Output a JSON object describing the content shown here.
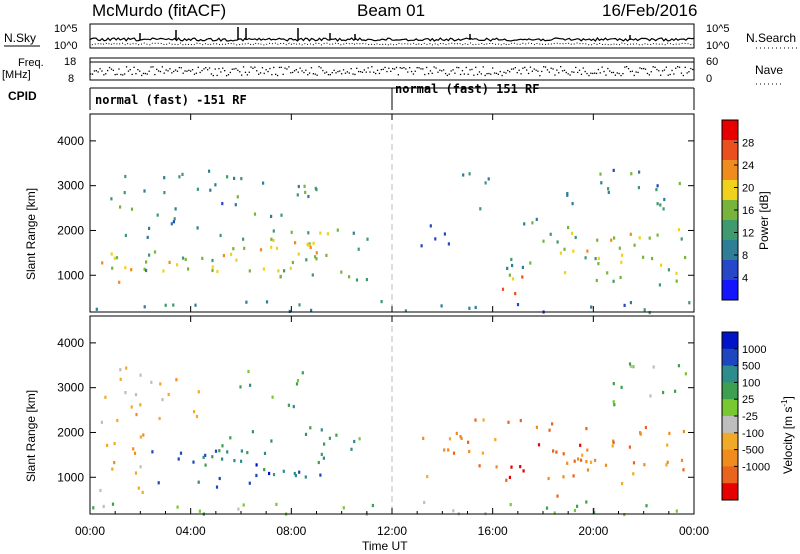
{
  "header": {
    "station": "McMurdo (fitACF)",
    "beam": "Beam 01",
    "date": "16/Feb/2016"
  },
  "top_panels": {
    "nsky_label": "N.Sky",
    "nsky_ticks": [
      "10^5",
      "10^0"
    ],
    "nsearch_label": "N.Search",
    "nsearch_ticks": [
      "10^5",
      "10^0"
    ],
    "freq_label": "Freq.",
    "freq_unit": "[MHz]",
    "freq_ticks": [
      "18",
      "8"
    ],
    "nave_label": "Nave",
    "nave_ticks": [
      "60",
      "0"
    ],
    "cpid_label": "CPID",
    "cpid_segments": [
      {
        "label": "normal (fast) -151 RF",
        "start_hour": 0,
        "end_hour": 12
      },
      {
        "label": "normal (fast) 151 RF",
        "start_hour": 12,
        "end_hour": 24
      }
    ]
  },
  "chart_data": [
    {
      "type": "heatmap",
      "name": "power",
      "ylabel": "Slant Range [km]",
      "yticks": [
        "1000",
        "2000",
        "3000",
        "4000"
      ],
      "ylim": [
        180,
        4600
      ],
      "xlim": [
        0,
        24
      ],
      "colorbar_label": "Power [dB]",
      "colorbar_ticks": [
        "4",
        "8",
        "12",
        "16",
        "20",
        "24",
        "28"
      ],
      "colorbar_range": [
        0,
        32
      ],
      "colors": [
        "#1414ff",
        "#2648c8",
        "#2e7f96",
        "#3f9a6e",
        "#78b43c",
        "#f0d21e",
        "#f08c1e",
        "#e9501e",
        "#e60000"
      ],
      "clusters": [
        {
          "t0": 0.2,
          "t1": 1.6,
          "r0": 650,
          "r1": 1400,
          "v": 22
        },
        {
          "t0": 0.3,
          "t1": 2.6,
          "r0": 900,
          "r1": 2300,
          "v": 14
        },
        {
          "t0": 0.8,
          "t1": 2.2,
          "r0": 2400,
          "r1": 3600,
          "v": 13
        },
        {
          "t0": 1.2,
          "t1": 5.2,
          "r0": 1000,
          "r1": 1600,
          "v": 18
        },
        {
          "t0": 4.8,
          "t1": 8.8,
          "r0": 850,
          "r1": 2000,
          "v": 17
        },
        {
          "t0": 6.5,
          "t1": 9.5,
          "r0": 1000,
          "r1": 2400,
          "v": 15
        },
        {
          "t0": 8.2,
          "t1": 9.5,
          "r0": 1100,
          "r1": 2500,
          "v": 20
        },
        {
          "t0": 9.3,
          "t1": 11.0,
          "r0": 900,
          "r1": 2100,
          "v": 12
        },
        {
          "t0": 2.5,
          "t1": 6.0,
          "r0": 2000,
          "r1": 3500,
          "v": 10
        },
        {
          "t0": 6.5,
          "t1": 9.0,
          "r0": 2300,
          "r1": 3300,
          "v": 11
        },
        {
          "t0": 16.2,
          "t1": 17.6,
          "r0": 600,
          "r1": 1400,
          "v": 24
        },
        {
          "t0": 16.5,
          "t1": 19.0,
          "r0": 1000,
          "r1": 2400,
          "v": 13
        },
        {
          "t0": 18.5,
          "t1": 23.8,
          "r0": 800,
          "r1": 2100,
          "v": 16
        },
        {
          "t0": 19.0,
          "t1": 22.5,
          "r0": 1300,
          "r1": 2000,
          "v": 21
        },
        {
          "t0": 18.8,
          "t1": 23.5,
          "r0": 2500,
          "r1": 3500,
          "v": 11
        },
        {
          "t0": 14.5,
          "t1": 15.8,
          "r0": 2500,
          "r1": 3400,
          "v": 9
        },
        {
          "t0": 12.8,
          "t1": 14.8,
          "r0": 1600,
          "r1": 2200,
          "v": 6
        },
        {
          "t0": 0.0,
          "t1": 24.0,
          "r0": 200,
          "r1": 450,
          "v": 7
        }
      ]
    },
    {
      "type": "heatmap",
      "name": "velocity",
      "ylabel": "Slant Range [km]",
      "xlabel": "Time UT",
      "xticks": [
        "00:00",
        "04:00",
        "08:00",
        "12:00",
        "16:00",
        "20:00",
        "00:00"
      ],
      "yticks": [
        "1000",
        "2000",
        "3000",
        "4000"
      ],
      "ylim": [
        180,
        4600
      ],
      "xlim": [
        0,
        24
      ],
      "colorbar_label": "Velocity [m s",
      "colorbar_label_sup": "-1",
      "colorbar_label_end": "]",
      "colorbar_ticks": [
        "1000",
        "500",
        "100",
        "25",
        "-25",
        "-100",
        "-500",
        "-1000"
      ],
      "colors": [
        "#0014c8",
        "#1e46be",
        "#2d8c8c",
        "#3ca050",
        "#78c832",
        "#bebebe",
        "#f0aa28",
        "#f08c1e",
        "#eb641e",
        "#e60000"
      ],
      "clusters": [
        {
          "t0": 0.2,
          "t1": 2.2,
          "r0": 600,
          "r1": 2400,
          "v": 6
        },
        {
          "t0": 0.3,
          "t1": 1.5,
          "r0": 2800,
          "r1": 3600,
          "v": 5
        },
        {
          "t0": 1.0,
          "t1": 4.5,
          "r0": 2300,
          "r1": 3500,
          "v": 6
        },
        {
          "t0": 2.2,
          "t1": 6.2,
          "r0": 900,
          "r1": 1700,
          "v": 2
        },
        {
          "t0": 5.0,
          "t1": 9.8,
          "r0": 800,
          "r1": 2200,
          "v": 2
        },
        {
          "t0": 6.5,
          "t1": 8.5,
          "r0": 1000,
          "r1": 1400,
          "v": 1
        },
        {
          "t0": 9.0,
          "t1": 11.2,
          "r0": 1300,
          "r1": 2200,
          "v": 3
        },
        {
          "t0": 5.5,
          "t1": 8.5,
          "r0": 2600,
          "r1": 3400,
          "v": 3
        },
        {
          "t0": 13.0,
          "t1": 16.2,
          "r0": 1000,
          "r1": 2400,
          "v": 7
        },
        {
          "t0": 16.3,
          "t1": 20.0,
          "r0": 600,
          "r1": 2400,
          "v": 8
        },
        {
          "t0": 19.5,
          "t1": 23.8,
          "r0": 800,
          "r1": 2200,
          "v": 7
        },
        {
          "t0": 20.5,
          "t1": 23.8,
          "r0": 2600,
          "r1": 3600,
          "v": 4
        },
        {
          "t0": 0.0,
          "t1": 24.0,
          "r0": 200,
          "r1": 500,
          "v": 4
        }
      ]
    }
  ]
}
